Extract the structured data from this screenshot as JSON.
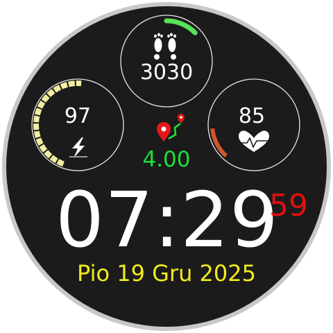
{
  "colors": {
    "bezel": "#c8c8c8",
    "face": "#1b1b1b",
    "steps_arc": "#57e257",
    "battery_arc": "#f2eea1",
    "hr_arc": "#d2552c",
    "distance": "#1fe03a",
    "date": "#f2ec1b",
    "seconds": "#e01010",
    "location_pin": "#e21a1a"
  },
  "steps": {
    "value": "3030",
    "progress": 0.3,
    "icon": "footprints-icon"
  },
  "battery": {
    "value": "97",
    "progress": 0.97,
    "icon": "charging-bolt-icon"
  },
  "heart_rate": {
    "value": "85",
    "progress": 0.12,
    "icon": "heartbeat-icon"
  },
  "distance": {
    "value": "4.00",
    "icon": "route-pin-icon"
  },
  "time": {
    "hours_minutes": "07:29",
    "seconds": "59"
  },
  "date": {
    "text": "Pio 19 Gru 2025"
  }
}
